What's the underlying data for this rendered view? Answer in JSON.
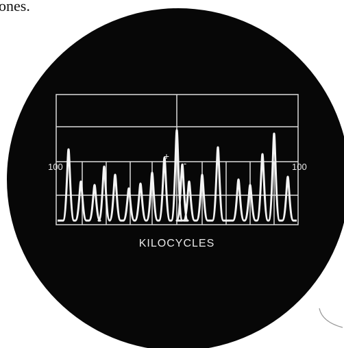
{
  "caption": "ones.",
  "left_label": "100",
  "right_label": "100",
  "plus_sign": "+",
  "minus_sign": "-",
  "axis_label": "KILOCYCLES"
}
